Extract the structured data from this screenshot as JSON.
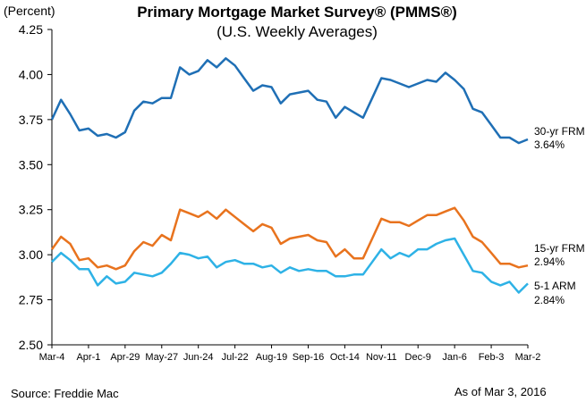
{
  "chart_data": {
    "type": "line",
    "title": "Primary Mortgage Market Survey® (PMMS®)",
    "subtitle": "(U.S. Weekly Averages)",
    "ylabel": "(Percent)",
    "xlabel": "",
    "ylim": [
      2.5,
      4.25
    ],
    "yticks": [
      "2.50",
      "2.75",
      "3.00",
      "3.25",
      "3.50",
      "3.75",
      "4.00",
      "4.25"
    ],
    "x_tick_labels": [
      "Mar-4",
      "Apr-1",
      "Apr-29",
      "May-27",
      "Jun-24",
      "Jul-22",
      "Aug-19",
      "Sep-16",
      "Oct-14",
      "Nov-11",
      "Dec-9",
      "Jan-6",
      "Feb-3",
      "Mar-2"
    ],
    "grid": false,
    "legend": "inline-right",
    "series": [
      {
        "name": "30-yr FRM",
        "last_label": "3.64%",
        "color": "#1f6fb5",
        "values": [
          3.75,
          3.86,
          3.78,
          3.69,
          3.7,
          3.66,
          3.67,
          3.65,
          3.68,
          3.8,
          3.85,
          3.84,
          3.87,
          3.87,
          4.04,
          4.0,
          4.02,
          4.08,
          4.04,
          4.09,
          4.05,
          3.98,
          3.91,
          3.94,
          3.93,
          3.84,
          3.89,
          3.9,
          3.91,
          3.86,
          3.85,
          3.76,
          3.82,
          3.79,
          3.76,
          3.87,
          3.98,
          3.97,
          3.95,
          3.93,
          3.95,
          3.97,
          3.96,
          4.01,
          3.97,
          3.92,
          3.81,
          3.79,
          3.72,
          3.65,
          3.65,
          3.62,
          3.64
        ]
      },
      {
        "name": "15-yr FRM",
        "last_label": "2.94%",
        "color": "#e8731e",
        "values": [
          3.03,
          3.1,
          3.06,
          2.97,
          2.98,
          2.93,
          2.94,
          2.92,
          2.94,
          3.02,
          3.07,
          3.05,
          3.11,
          3.08,
          3.25,
          3.23,
          3.21,
          3.24,
          3.2,
          3.25,
          3.21,
          3.17,
          3.13,
          3.17,
          3.15,
          3.06,
          3.09,
          3.1,
          3.11,
          3.08,
          3.07,
          2.99,
          3.03,
          2.98,
          2.98,
          3.09,
          3.2,
          3.18,
          3.18,
          3.16,
          3.19,
          3.22,
          3.22,
          3.24,
          3.26,
          3.19,
          3.1,
          3.07,
          3.01,
          2.95,
          2.95,
          2.93,
          2.94
        ]
      },
      {
        "name": "5-1 ARM",
        "last_label": "2.84%",
        "color": "#2eb2e6",
        "values": [
          2.96,
          3.01,
          2.97,
          2.92,
          2.92,
          2.83,
          2.88,
          2.84,
          2.85,
          2.9,
          2.89,
          2.88,
          2.9,
          2.95,
          3.01,
          3.0,
          2.98,
          2.99,
          2.93,
          2.96,
          2.97,
          2.95,
          2.95,
          2.93,
          2.94,
          2.9,
          2.93,
          2.91,
          2.92,
          2.91,
          2.91,
          2.88,
          2.88,
          2.89,
          2.89,
          2.96,
          3.03,
          2.98,
          3.01,
          2.99,
          3.03,
          3.03,
          3.06,
          3.08,
          3.09,
          3.0,
          2.91,
          2.9,
          2.85,
          2.83,
          2.85,
          2.79,
          2.84
        ]
      }
    ]
  },
  "footer": {
    "source": "Source: Freddie Mac",
    "as_of": "As of Mar 3, 2016"
  }
}
